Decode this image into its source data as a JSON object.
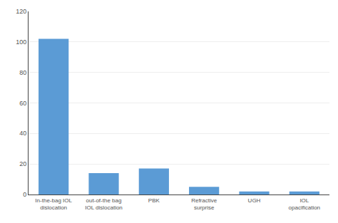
{
  "chart_data": {
    "type": "bar",
    "categories": [
      "In-the-bag IOL\ndislocation",
      "out-of-the bag\nIOL dislocation",
      "PBK",
      "Refractive\nsurprise",
      "UGH",
      "IOL\nopacification"
    ],
    "values": [
      102,
      14,
      17,
      5,
      2,
      2
    ],
    "color": "#5B9BD5",
    "ylim": [
      0,
      120
    ],
    "yticks": [
      0,
      20,
      40,
      60,
      80,
      100,
      120
    ],
    "grid": true
  }
}
